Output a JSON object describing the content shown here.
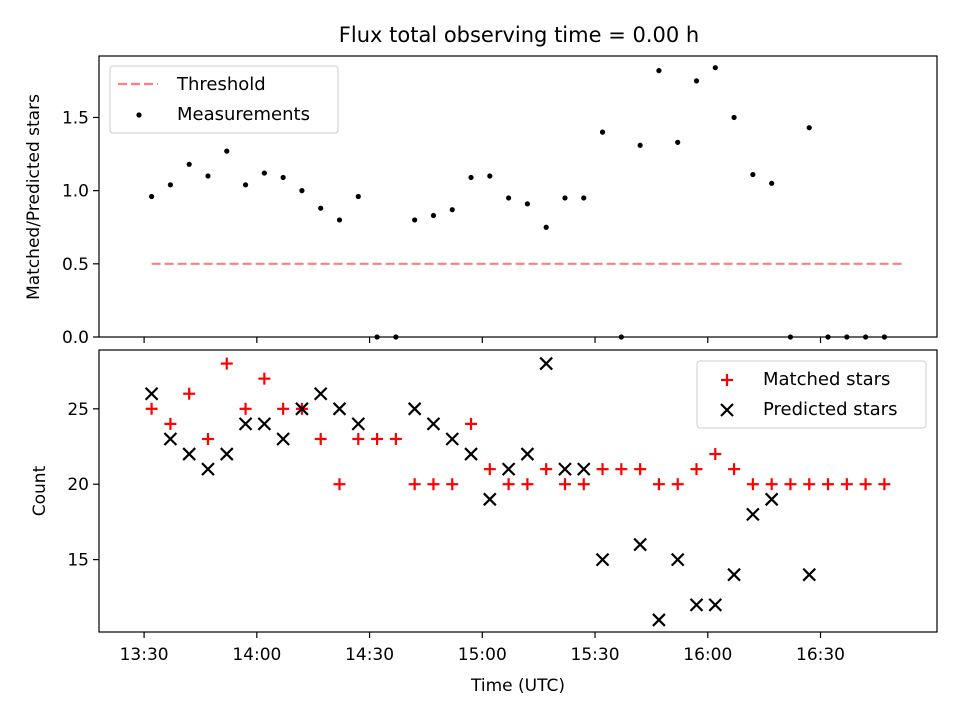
{
  "title": "Flux total observing time = 0.00 h",
  "colors": {
    "threshold": "#ff7f7f",
    "measurement": "#000000",
    "matched": "#ff0000",
    "predicted": "#000000"
  },
  "chart_data": [
    {
      "type": "scatter",
      "panel": "top",
      "ylabel": "Matched/Predicted stars",
      "ylim": [
        0,
        1.92
      ],
      "yticks": [
        "0.0",
        "0.5",
        "1.0",
        "1.5"
      ],
      "ytick_values": [
        0,
        0.5,
        1.0,
        1.5
      ],
      "legend_placement": "upper-left",
      "threshold": {
        "name": "Threshold",
        "value": 0.5,
        "x_start": "13:32",
        "x_end": "16:52"
      },
      "series": [
        {
          "name": "Measurements",
          "x": [
            "13:32",
            "13:37",
            "13:42",
            "13:47",
            "13:52",
            "13:57",
            "14:02",
            "14:07",
            "14:12",
            "14:17",
            "14:22",
            "14:27",
            "14:32",
            "14:37",
            "14:42",
            "14:47",
            "14:52",
            "14:57",
            "15:02",
            "15:07",
            "15:12",
            "15:17",
            "15:22",
            "15:27",
            "15:32",
            "15:37",
            "15:42",
            "15:47",
            "15:52",
            "15:57",
            "16:02",
            "16:07",
            "16:12",
            "16:17",
            "16:22",
            "16:27",
            "16:32",
            "16:37",
            "16:42",
            "16:47"
          ],
          "y": [
            0.96,
            1.04,
            1.18,
            1.1,
            1.27,
            1.04,
            1.12,
            1.09,
            1.0,
            0.88,
            0.8,
            0.96,
            0.0,
            0.0,
            0.8,
            0.83,
            0.87,
            1.09,
            1.1,
            0.95,
            0.91,
            0.75,
            0.95,
            0.95,
            1.4,
            0.0,
            1.31,
            1.82,
            1.33,
            1.75,
            1.84,
            1.5,
            1.11,
            1.05,
            0.0,
            1.43,
            0.0,
            0.0,
            0.0,
            0.0
          ]
        }
      ]
    },
    {
      "type": "scatter",
      "panel": "bottom",
      "ylabel": "Count",
      "xlabel": "Time (UTC)",
      "ylim": [
        10.2,
        28.9
      ],
      "yticks": [
        "15",
        "20",
        "25"
      ],
      "ytick_values": [
        15,
        20,
        25
      ],
      "xticks": [
        "13:30",
        "14:00",
        "14:30",
        "15:00",
        "15:30",
        "16:00",
        "16:30"
      ],
      "legend_placement": "upper-right",
      "series": [
        {
          "name": "Matched stars",
          "marker": "+",
          "x": [
            "13:32",
            "13:37",
            "13:42",
            "13:47",
            "13:52",
            "13:57",
            "14:02",
            "14:07",
            "14:12",
            "14:17",
            "14:22",
            "14:27",
            "14:32",
            "14:37",
            "14:42",
            "14:47",
            "14:52",
            "14:57",
            "15:02",
            "15:07",
            "15:12",
            "15:17",
            "15:22",
            "15:27",
            "15:32",
            "15:37",
            "15:42",
            "15:47",
            "15:52",
            "15:57",
            "16:02",
            "16:07",
            "16:12",
            "16:17",
            "16:22",
            "16:27",
            "16:32",
            "16:37",
            "16:42",
            "16:47"
          ],
          "y": [
            25,
            24,
            26,
            23,
            28,
            25,
            27,
            25,
            25,
            23,
            20,
            23,
            23,
            23,
            20,
            20,
            20,
            24,
            21,
            20,
            20,
            21,
            20,
            20,
            21,
            21,
            21,
            20,
            20,
            21,
            22,
            21,
            20,
            20,
            20,
            20,
            20,
            20,
            20,
            20
          ]
        },
        {
          "name": "Predicted stars",
          "marker": "x",
          "x": [
            "13:32",
            "13:37",
            "13:42",
            "13:47",
            "13:52",
            "13:57",
            "14:02",
            "14:07",
            "14:12",
            "14:17",
            "14:22",
            "14:27",
            "14:42",
            "14:47",
            "14:52",
            "14:57",
            "15:02",
            "15:07",
            "15:12",
            "15:17",
            "15:22",
            "15:27",
            "15:32",
            "15:42",
            "15:47",
            "15:52",
            "15:57",
            "16:02",
            "16:07",
            "16:12",
            "16:17",
            "16:27"
          ],
          "y": [
            26,
            23,
            22,
            21,
            22,
            24,
            24,
            23,
            25,
            26,
            25,
            24,
            25,
            24,
            23,
            22,
            19,
            21,
            22,
            28,
            21,
            21,
            15,
            16,
            11,
            15,
            12,
            12,
            14,
            18,
            19,
            14
          ]
        }
      ]
    }
  ]
}
